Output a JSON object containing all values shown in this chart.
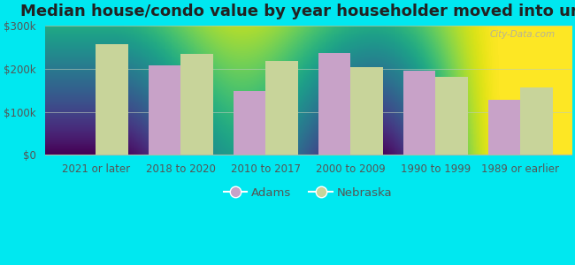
{
  "title": "Median house/condo value by year householder moved into unit",
  "categories": [
    "2021 or later",
    "2018 to 2020",
    "2010 to 2017",
    "2000 to 2009",
    "1990 to 1999",
    "1989 or earlier"
  ],
  "adams_values": [
    null,
    208000,
    148000,
    237000,
    195000,
    128000
  ],
  "nebraska_values": [
    258000,
    235000,
    218000,
    204000,
    182000,
    157000
  ],
  "adams_color": "#c8a2c8",
  "nebraska_color": "#c8d49a",
  "background_outer": "#00e8f0",
  "background_inner": "#e8f5e8",
  "ylim": [
    0,
    300000
  ],
  "yticks": [
    0,
    100000,
    200000,
    300000
  ],
  "ytick_labels": [
    "$0",
    "$100k",
    "$200k",
    "$300k"
  ],
  "legend_labels": [
    "Adams",
    "Nebraska"
  ],
  "bar_width": 0.38,
  "title_fontsize": 13,
  "tick_fontsize": 8.5,
  "legend_fontsize": 9.5
}
